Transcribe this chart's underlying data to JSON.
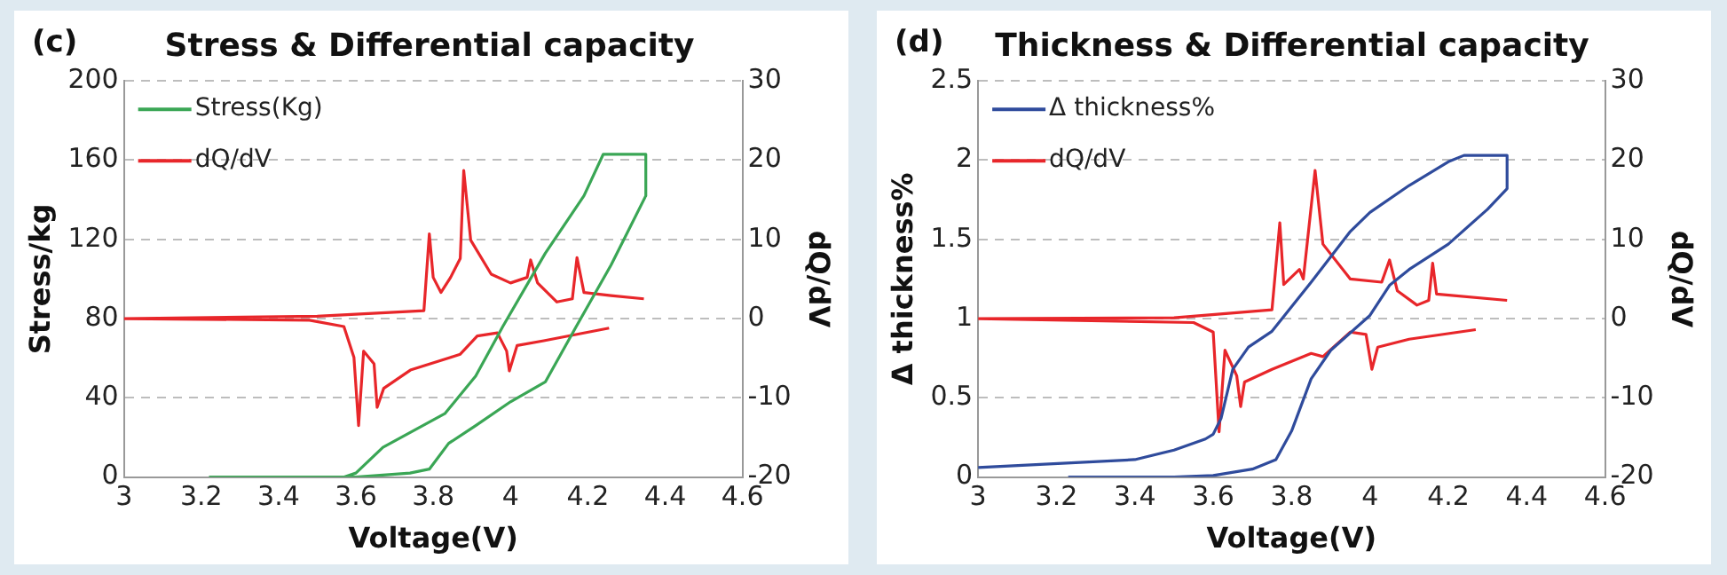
{
  "chart_data": [
    {
      "type": "line",
      "title": "Stress & Differential capacity",
      "annotations": [
        "(c)"
      ],
      "xlabel": "Voltage(V)",
      "ylabel": "Stress/kg",
      "y2label": "dQ/dV",
      "xlim": [
        3,
        4.6
      ],
      "xticks": [
        3,
        3.2,
        3.4,
        3.6,
        3.8,
        4,
        4.2,
        4.4,
        4.6
      ],
      "ylim": [
        0,
        200
      ],
      "yticks": [
        0,
        40,
        80,
        120,
        160,
        200
      ],
      "y2lim": [
        -20,
        30
      ],
      "y2ticks": [
        -20,
        -10,
        0,
        10,
        20,
        30
      ],
      "grid": "y",
      "legend": "top left",
      "marker": "none",
      "line_style": "solid",
      "series": [
        {
          "name": "Stress(Kg)",
          "color": "#3aa655",
          "type": "line",
          "x": [
            3.22,
            3.48,
            3.57,
            3.6,
            3.67,
            3.83,
            3.91,
            3.98,
            4.09,
            4.19,
            4.24,
            4.35,
            4.35,
            4.26,
            4.17,
            4.09,
            4.0,
            3.91,
            3.84,
            3.79,
            3.74,
            3.6,
            3.48
          ],
          "values": [
            0,
            0,
            0,
            2,
            15,
            32,
            51,
            76,
            113,
            142,
            163,
            163,
            142,
            107,
            76,
            48,
            38,
            26,
            17,
            4,
            2,
            0,
            0
          ]
        },
        {
          "name": "dQ/dV",
          "color": "#e8262a",
          "type": "line",
          "axis": "y2",
          "x": [
            3.0,
            3.5,
            3.776,
            3.79,
            3.8,
            3.82,
            3.845,
            3.87,
            3.879,
            3.897,
            3.95,
            4.0,
            4.043,
            4.052,
            4.07,
            4.12,
            4.16,
            4.172,
            4.19,
            4.26,
            4.345,
            null,
            4.255,
            4.086,
            4.017,
            3.997,
            3.99,
            3.966,
            3.914,
            3.87,
            3.845,
            3.741,
            3.672,
            3.655,
            3.647,
            3.62,
            3.607,
            3.595,
            3.569,
            3.48,
            3.0
          ],
          "values": [
            0,
            0.3,
            1,
            10.7,
            5.2,
            3.3,
            5.2,
            7.6,
            18.7,
            9.9,
            5.6,
            4.5,
            5.2,
            7.4,
            4.5,
            2.1,
            2.5,
            7.7,
            3.3,
            2.9,
            2.5,
            null,
            -1.2,
            -2.8,
            -3.4,
            -6.6,
            -4.1,
            -1.8,
            -2.2,
            -4.5,
            -4.9,
            -6.5,
            -8.8,
            -11.2,
            -5.7,
            -4.1,
            -13.5,
            -4.9,
            -1,
            -0.2,
            0
          ]
        }
      ]
    },
    {
      "type": "line",
      "title": "Thickness & Differential capacity",
      "annotations": [
        "(d)"
      ],
      "xlabel": "Voltage(V)",
      "ylabel": "Δ thickness%",
      "y2label": "dQ/dV",
      "xlim": [
        3,
        4.6
      ],
      "xticks": [
        3,
        3.2,
        3.4,
        3.6,
        3.8,
        4,
        4.2,
        4.4,
        4.6
      ],
      "ylim": [
        0,
        2.5
      ],
      "yticks": [
        0,
        0.5,
        1,
        1.5,
        2,
        2.5
      ],
      "y2lim": [
        -20,
        30
      ],
      "y2ticks": [
        -20,
        -10,
        0,
        10,
        20,
        30
      ],
      "grid": "y",
      "legend": "top left",
      "marker": "none",
      "line_style": "solid",
      "series": [
        {
          "name": "Δ thickness%",
          "color": "#2f4b9c",
          "type": "line",
          "x": [
            3.0,
            3.4,
            3.5,
            3.58,
            3.6,
            3.62,
            3.65,
            3.69,
            3.75,
            3.85,
            3.95,
            4.0,
            4.1,
            4.2,
            4.24,
            4.35,
            4.35,
            4.3,
            4.2,
            4.1,
            4.05,
            4.0,
            3.9,
            3.85,
            3.8,
            3.76,
            3.7,
            3.6,
            3.5,
            3.23
          ],
          "values": [
            0.06,
            0.11,
            0.17,
            0.24,
            0.27,
            0.37,
            0.68,
            0.82,
            0.92,
            1.23,
            1.55,
            1.67,
            1.84,
            1.99,
            2.03,
            2.03,
            1.82,
            1.69,
            1.47,
            1.31,
            1.21,
            1.02,
            0.8,
            0.62,
            0.29,
            0.11,
            0.05,
            0.01,
            0,
            0
          ]
        },
        {
          "name": "dQ/dV",
          "color": "#e8262a",
          "type": "line",
          "axis": "y2",
          "x": [
            3.0,
            3.5,
            3.75,
            3.77,
            3.78,
            3.82,
            3.83,
            3.86,
            3.88,
            3.95,
            4.03,
            4.05,
            4.07,
            4.12,
            4.15,
            4.16,
            4.17,
            4.35,
            null,
            4.27,
            4.1,
            4.02,
            4.005,
            3.99,
            3.95,
            3.88,
            3.85,
            3.75,
            3.68,
            3.67,
            3.66,
            3.63,
            3.615,
            3.6,
            3.55,
            3.0
          ],
          "values": [
            0,
            0.1,
            1.1,
            12.1,
            4.3,
            6.2,
            5,
            18.7,
            9.4,
            5,
            4.6,
            7.4,
            3.5,
            1.7,
            2.3,
            7,
            3.1,
            2.3,
            null,
            -1.4,
            -2.6,
            -3.6,
            -6.4,
            -2,
            -1.7,
            -4.8,
            -4.4,
            -6.4,
            -8,
            -11.1,
            -7.2,
            -4,
            -14.3,
            -1.7,
            -0.5,
            0
          ]
        }
      ]
    }
  ]
}
